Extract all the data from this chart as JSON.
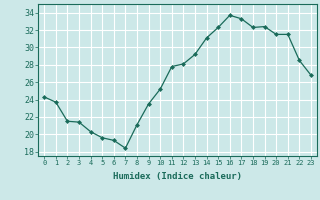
{
  "x": [
    0,
    1,
    2,
    3,
    4,
    5,
    6,
    7,
    8,
    9,
    10,
    11,
    12,
    13,
    14,
    15,
    16,
    17,
    18,
    19,
    20,
    21,
    22,
    23
  ],
  "y": [
    24.3,
    23.7,
    21.5,
    21.4,
    20.3,
    19.6,
    19.3,
    18.4,
    21.1,
    23.5,
    25.2,
    27.8,
    28.1,
    29.2,
    31.1,
    32.3,
    33.7,
    33.3,
    32.3,
    32.4,
    31.5,
    31.5,
    28.5,
    26.8
  ],
  "line_color": "#1a6b5a",
  "marker": "D",
  "marker_size": 2,
  "bg_color": "#cce8e8",
  "grid_color": "#ffffff",
  "tick_color": "#1a6b5a",
  "xlabel": "Humidex (Indice chaleur)",
  "ylabel_ticks": [
    18,
    20,
    22,
    24,
    26,
    28,
    30,
    32,
    34
  ],
  "xlim": [
    -0.5,
    23.5
  ],
  "ylim": [
    17.5,
    35.0
  ]
}
